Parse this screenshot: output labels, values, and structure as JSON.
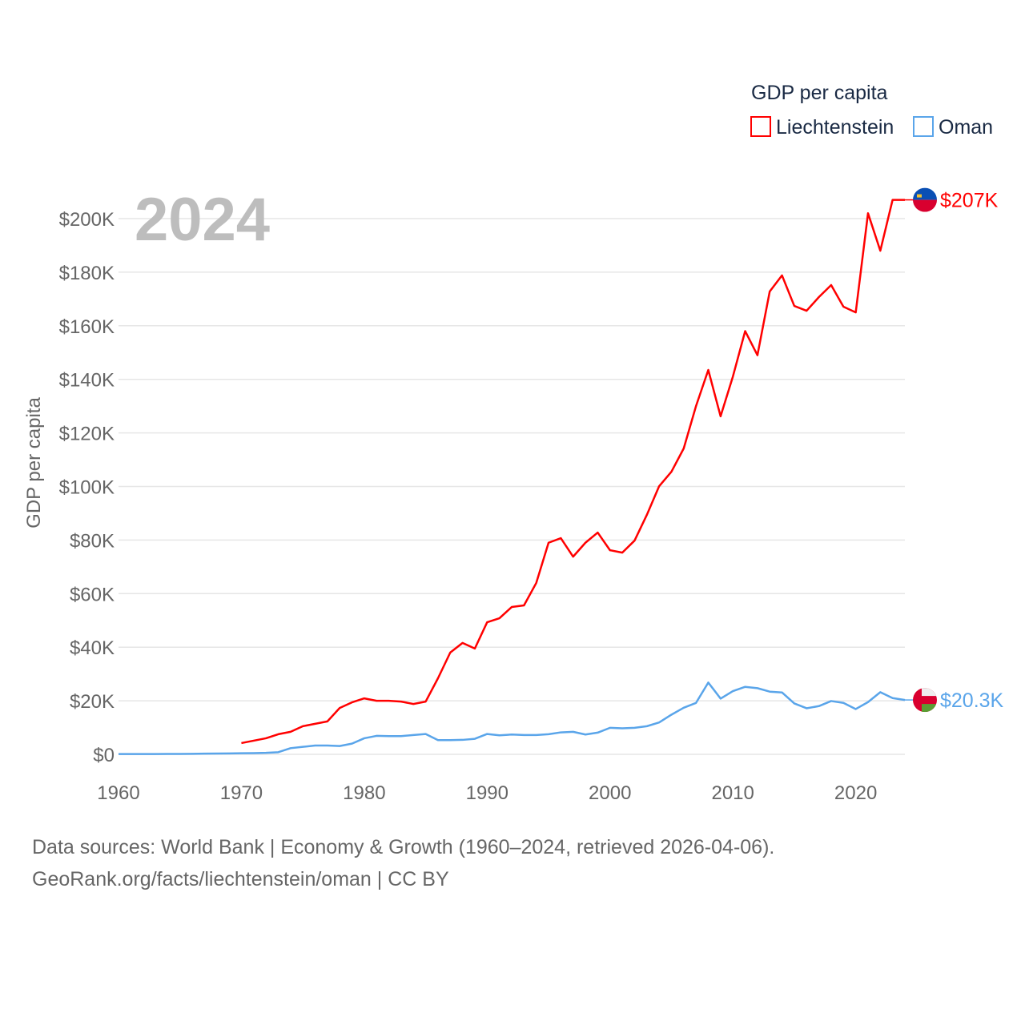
{
  "chart_data": {
    "type": "line",
    "title": "GDP per capita",
    "year_label": "2024",
    "ylabel": "GDP per capita",
    "xlabel": "",
    "xlim": [
      1960,
      2024
    ],
    "ylim": [
      0,
      200000
    ],
    "yticks": [
      0,
      20000,
      40000,
      60000,
      80000,
      100000,
      120000,
      140000,
      160000,
      180000,
      200000
    ],
    "ytick_labels": [
      "$0",
      "$20K",
      "$40K",
      "$60K",
      "$80K",
      "$100K",
      "$120K",
      "$140K",
      "$160K",
      "$180K",
      "$200K"
    ],
    "xticks": [
      1960,
      1970,
      1980,
      1990,
      2000,
      2010,
      2020
    ],
    "xtick_labels": [
      "1960",
      "1970",
      "1980",
      "1990",
      "2000",
      "2010",
      "2020"
    ],
    "grid": true,
    "legend_position": "top-right",
    "series": [
      {
        "name": "Liechtenstein",
        "color": "#ff0000",
        "end_label": "$207K",
        "start_year": 1970,
        "values": [
          4200,
          5100,
          6000,
          7500,
          8400,
          10500,
          11400,
          12300,
          17300,
          19400,
          20900,
          20000,
          20000,
          19700,
          18800,
          19700,
          28400,
          38000,
          41600,
          39500,
          49300,
          50800,
          55000,
          55600,
          64000,
          79000,
          80700,
          73800,
          79000,
          82800,
          76200,
          75300,
          79800,
          89400,
          100100,
          105500,
          114200,
          130000,
          143500,
          126200,
          141000,
          158000,
          149000,
          172800,
          178800,
          167400,
          165600,
          170700,
          175200,
          167100,
          165000,
          202000,
          188000,
          207000,
          207000
        ]
      },
      {
        "name": "Oman",
        "color": "#5aa5ea",
        "end_label": "$20.3K",
        "start_year": 1960,
        "values": [
          100,
          110,
          120,
          130,
          140,
          150,
          200,
          250,
          300,
          350,
          400,
          450,
          550,
          800,
          2300,
          2800,
          3300,
          3300,
          3100,
          4000,
          6000,
          6900,
          6800,
          6800,
          7200,
          7600,
          5300,
          5300,
          5400,
          5800,
          7600,
          7100,
          7400,
          7200,
          7200,
          7500,
          8200,
          8400,
          7400,
          8100,
          9900,
          9700,
          9900,
          10500,
          11900,
          14800,
          17400,
          19200,
          26800,
          20800,
          23600,
          25200,
          24700,
          23400,
          23100,
          19000,
          17200,
          18000,
          19900,
          19200,
          16900,
          19500,
          23200,
          21000,
          20300
        ]
      }
    ]
  },
  "footer": {
    "line1": "Data sources: World Bank | Economy & Growth (1960–2024, retrieved 2026-04-06).",
    "line2": "GeoRank.org/facts/liechtenstein/oman | CC BY"
  }
}
